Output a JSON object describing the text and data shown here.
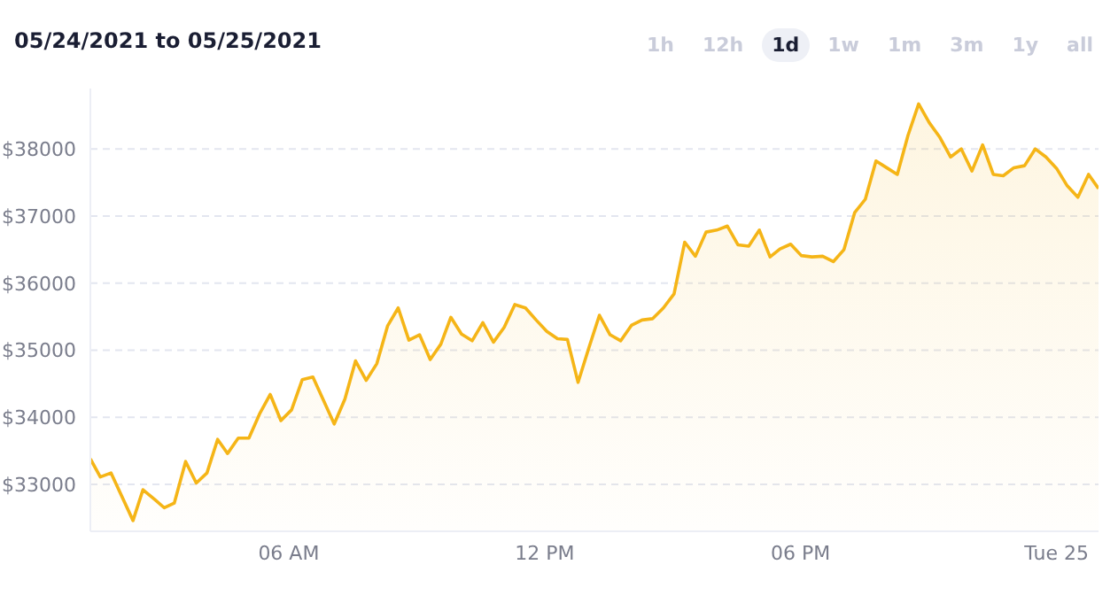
{
  "chart_data": {
    "type": "area",
    "title": "05/24/2021 to 05/25/2021",
    "annotations": [
      "1h",
      "12h",
      "1d",
      "1w",
      "1m",
      "3m",
      "1y",
      "all"
    ],
    "x": [
      "2021-05-24T01:21",
      "2021-05-24T01:35",
      "2021-05-24T01:50",
      "2021-05-24T02:21",
      "2021-05-24T02:35",
      "2021-05-24T02:52",
      "2021-05-24T03:05",
      "2021-05-24T03:19",
      "2021-05-24T03:35",
      "2021-05-24T03:50",
      "2021-05-24T04:05",
      "2021-05-24T04:20",
      "2021-05-24T04:34",
      "2021-05-24T04:49",
      "2021-05-24T05:04",
      "2021-05-24T05:19",
      "2021-05-24T05:34",
      "2021-05-24T05:49",
      "2021-05-24T06:04",
      "2021-05-24T06:19",
      "2021-05-24T06:34",
      "2021-05-24T06:49",
      "2021-05-24T07:04",
      "2021-05-24T07:19",
      "2021-05-24T07:34",
      "2021-05-24T07:49",
      "2021-05-24T08:04",
      "2021-05-24T08:19",
      "2021-05-24T08:34",
      "2021-05-24T08:49",
      "2021-05-24T09:04",
      "2021-05-24T09:19",
      "2021-05-24T09:34",
      "2021-05-24T09:48",
      "2021-05-24T10:03",
      "2021-05-24T10:18",
      "2021-05-24T10:33",
      "2021-05-24T10:48",
      "2021-05-24T11:03",
      "2021-05-24T11:18",
      "2021-05-24T11:33",
      "2021-05-24T11:48",
      "2021-05-24T12:03",
      "2021-05-24T12:18",
      "2021-05-24T12:32",
      "2021-05-24T12:47",
      "2021-05-24T13:02",
      "2021-05-24T13:17",
      "2021-05-24T13:32",
      "2021-05-24T13:47",
      "2021-05-24T14:02",
      "2021-05-24T14:17",
      "2021-05-24T14:32",
      "2021-05-24T14:47",
      "2021-05-24T15:02",
      "2021-05-24T15:17",
      "2021-05-24T15:32",
      "2021-05-24T15:47",
      "2021-05-24T16:02",
      "2021-05-24T16:17",
      "2021-05-24T16:32",
      "2021-05-24T16:47",
      "2021-05-24T17:02",
      "2021-05-24T17:17",
      "2021-05-24T17:31",
      "2021-05-24T17:46",
      "2021-05-24T18:01",
      "2021-05-24T18:16",
      "2021-05-24T18:31",
      "2021-05-24T18:46",
      "2021-05-24T19:01",
      "2021-05-24T19:16",
      "2021-05-24T19:31",
      "2021-05-24T19:46",
      "2021-05-24T20:01",
      "2021-05-24T20:16",
      "2021-05-24T20:31",
      "2021-05-24T20:46",
      "2021-05-24T21:01",
      "2021-05-24T21:16",
      "2021-05-24T21:31",
      "2021-05-24T21:46",
      "2021-05-24T22:01",
      "2021-05-24T22:16",
      "2021-05-24T22:31",
      "2021-05-24T22:45",
      "2021-05-24T23:00",
      "2021-05-24T23:15",
      "2021-05-24T23:30",
      "2021-05-24T23:45",
      "2021-05-25T00:00",
      "2021-05-25T00:15",
      "2021-05-25T00:30",
      "2021-05-25T00:45",
      "2021-05-25T00:59"
    ],
    "series": [
      {
        "color": "#f5b517",
        "values": [
          33380,
          33110,
          33170,
          32460,
          32920,
          32770,
          32650,
          32720,
          33340,
          33020,
          33170,
          33670,
          33460,
          33690,
          33690,
          34050,
          34340,
          33950,
          34110,
          34560,
          34600,
          34250,
          33900,
          34270,
          34840,
          34550,
          34800,
          35360,
          35630,
          35150,
          35230,
          34860,
          35090,
          35490,
          35240,
          35140,
          35410,
          35120,
          35340,
          35680,
          35630,
          35450,
          35280,
          35170,
          35160,
          34520,
          35030,
          35520,
          35230,
          35140,
          35370,
          35450,
          35470,
          35630,
          35840,
          36610,
          36400,
          36760,
          36790,
          36850,
          36570,
          36550,
          36790,
          36390,
          36510,
          36580,
          36410,
          36390,
          36400,
          36320,
          36500,
          37050,
          37250,
          37820,
          37720,
          37620,
          38200,
          38670,
          38390,
          38170,
          37880,
          38000,
          37670,
          38060,
          37620,
          37600,
          37720,
          37750,
          38000,
          37880,
          37710,
          37450,
          37280,
          37620,
          37410
        ]
      }
    ],
    "xlim": [
      "2021-05-24T01:21",
      "2021-05-25T00:59"
    ],
    "xticks": [
      {
        "value": "2021-05-24T06:00",
        "label": "06 AM"
      },
      {
        "value": "2021-05-24T12:00",
        "label": "12 PM"
      },
      {
        "value": "2021-05-24T18:00",
        "label": "06 PM"
      },
      {
        "value": "2021-05-25T00:00",
        "label": "Tue 25"
      }
    ],
    "ylim": [
      32300,
      38900
    ],
    "yticks": [
      {
        "value": 33000,
        "label": "$33000"
      },
      {
        "value": 34000,
        "label": "$34000"
      },
      {
        "value": 35000,
        "label": "$35000"
      },
      {
        "value": 36000,
        "label": "$36000"
      },
      {
        "value": 37000,
        "label": "$37000"
      },
      {
        "value": 38000,
        "label": "$38000"
      }
    ],
    "grid": "y"
  }
}
